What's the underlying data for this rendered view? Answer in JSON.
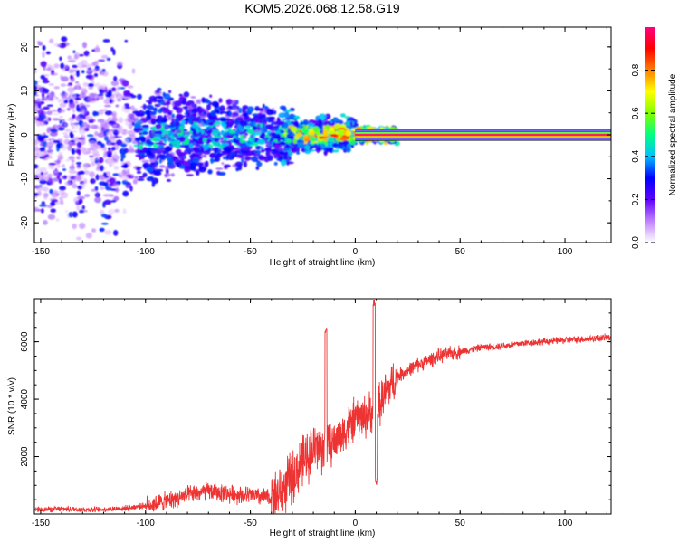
{
  "title": "KOM5.2026.068.12.58.G19",
  "chart_data": [
    {
      "type": "heatmap",
      "name": "spectrogram",
      "xlabel": "Height of straight line (km)",
      "ylabel": "Frequency (Hz)",
      "xlim": [
        -153,
        122
      ],
      "ylim": [
        -24.5,
        24.5
      ],
      "xticks": [
        -150,
        -100,
        -50,
        0,
        50,
        100
      ],
      "yticks": [
        -20,
        -10,
        0,
        10,
        20
      ],
      "colorbar": {
        "label": "Normalized spectral amplitude",
        "range": [
          0.0,
          1.0
        ],
        "ticks": [
          0.0,
          0.2,
          0.4,
          0.6,
          0.8
        ],
        "colors": [
          "#ffffff",
          "#c080ff",
          "#6000ff",
          "#0000ff",
          "#00c0ff",
          "#00ff80",
          "#80ff00",
          "#ffff00",
          "#ff8000",
          "#ff0000",
          "#ff0080"
        ]
      },
      "features": [
        {
          "description": "steady signal line",
          "x_from": 0,
          "x_to": 122,
          "freq": 0.0,
          "amplitude": 1.0
        },
        {
          "description": "fading speckle",
          "x_from": -153,
          "x_to": 20,
          "freq_spread": 24
        }
      ]
    },
    {
      "type": "line",
      "name": "snr",
      "xlabel": "Height of straight line (km)",
      "ylabel": "SNR (10 * v/v)",
      "xlim": [
        -153,
        122
      ],
      "ylim": [
        0,
        7500
      ],
      "xticks": [
        -150,
        -100,
        -50,
        0,
        50,
        100
      ],
      "yticks": [
        2000,
        4000,
        6000
      ],
      "color": "#ee3333",
      "series": [
        {
          "name": "SNR",
          "x": [
            -153,
            -140,
            -125,
            -110,
            -100,
            -90,
            -80,
            -70,
            -60,
            -50,
            -40,
            -35,
            -30,
            -25,
            -20,
            -15,
            -10,
            -5,
            0,
            5,
            10,
            15,
            20,
            30,
            40,
            50,
            60,
            70,
            80,
            90,
            100,
            110,
            122
          ],
          "y": [
            150,
            180,
            150,
            200,
            300,
            450,
            650,
            800,
            700,
            650,
            550,
            800,
            1300,
            1800,
            2300,
            2300,
            2500,
            2900,
            3300,
            3400,
            3600,
            4300,
            4800,
            5200,
            5500,
            5650,
            5800,
            5850,
            5950,
            6000,
            6050,
            6100,
            6150
          ]
        }
      ],
      "spikes": [
        {
          "x": -14,
          "y": 6500
        },
        {
          "x": 9,
          "y": 7500
        },
        {
          "x": 10,
          "y": 1300
        }
      ]
    }
  ]
}
